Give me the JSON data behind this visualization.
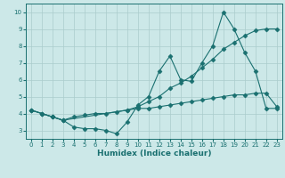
{
  "xlabel": "Humidex (Indice chaleur)",
  "background_color": "#cce8e8",
  "grid_color": "#aacccc",
  "line_color": "#1a7070",
  "xlim": [
    -0.5,
    23.5
  ],
  "ylim": [
    2.5,
    10.5
  ],
  "line1_x": [
    0,
    1,
    2,
    3,
    4,
    5,
    6,
    7,
    8,
    9,
    10,
    11,
    12,
    13,
    14,
    15,
    16,
    17,
    18,
    19,
    20,
    21,
    22,
    23
  ],
  "line1_y": [
    4.2,
    4.0,
    3.8,
    3.6,
    3.2,
    3.1,
    3.1,
    3.0,
    2.8,
    3.5,
    4.5,
    5.0,
    6.5,
    7.4,
    6.0,
    5.9,
    7.0,
    8.0,
    10.0,
    9.0,
    7.6,
    6.5,
    4.3,
    4.3
  ],
  "line2_x": [
    0,
    1,
    2,
    3,
    9,
    10,
    11,
    12,
    13,
    14,
    15,
    16,
    17,
    18,
    19,
    20,
    21,
    22,
    23
  ],
  "line2_y": [
    4.2,
    4.0,
    3.8,
    3.6,
    4.2,
    4.4,
    4.7,
    5.0,
    5.5,
    5.8,
    6.2,
    6.7,
    7.2,
    7.8,
    8.2,
    8.6,
    8.9,
    9.0,
    9.0
  ],
  "line3_x": [
    0,
    1,
    2,
    3,
    4,
    5,
    6,
    7,
    8,
    9,
    10,
    11,
    12,
    13,
    14,
    15,
    16,
    17,
    18,
    19,
    20,
    21,
    22,
    23
  ],
  "line3_y": [
    4.2,
    4.0,
    3.8,
    3.6,
    3.8,
    3.9,
    4.0,
    4.0,
    4.1,
    4.2,
    4.3,
    4.3,
    4.4,
    4.5,
    4.6,
    4.7,
    4.8,
    4.9,
    5.0,
    5.1,
    5.1,
    5.2,
    5.2,
    4.4
  ],
  "yticks": [
    3,
    4,
    5,
    6,
    7,
    8,
    9,
    10
  ],
  "xticks": [
    0,
    1,
    2,
    3,
    4,
    5,
    6,
    7,
    8,
    9,
    10,
    11,
    12,
    13,
    14,
    15,
    16,
    17,
    18,
    19,
    20,
    21,
    22,
    23
  ]
}
